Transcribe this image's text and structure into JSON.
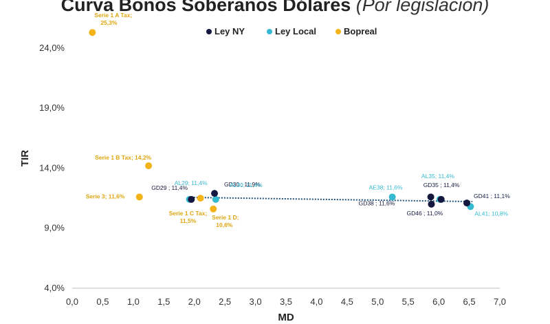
{
  "title": {
    "main": "Curva Bonos Soberanos Dólares",
    "sub": "(Por legislación)"
  },
  "chart_data": {
    "type": "scatter",
    "title": "Curva Bonos Soberanos Dólares (Por legislación)",
    "xlabel": "MD",
    "ylabel": "TIR",
    "xlim": [
      0,
      7
    ],
    "ylim": [
      4,
      26
    ],
    "x_ticks": [
      "0,0",
      "0,5",
      "1,0",
      "1,5",
      "2,0",
      "2,5",
      "3,0",
      "3,5",
      "4,0",
      "4,5",
      "5,0",
      "5,5",
      "6,0",
      "6,5",
      "7,0"
    ],
    "y_ticks": [
      "4,0%",
      "9,0%",
      "14,0%",
      "19,0%",
      "24,0%"
    ],
    "legend": "top",
    "colors": {
      "Ley NY": "#14183f",
      "Ley Local": "#35b9d0",
      "Bopreal": "#f3b41a",
      "trend": "#1d4f78"
    },
    "series": [
      {
        "name": "Ley NY",
        "points": [
          {
            "x": 1.95,
            "y": 11.4,
            "label": "GD29 ; 11,4%"
          },
          {
            "x": 2.33,
            "y": 11.9,
            "label": "GD30 ; 11,9%"
          },
          {
            "x": 5.88,
            "y": 11.0,
            "label": "GD46 ; 11,0%"
          },
          {
            "x": 5.87,
            "y": 11.6,
            "label": "GD38 ; 11,6%"
          },
          {
            "x": 6.04,
            "y": 11.4,
            "label": "GD35 ; 11,4%"
          },
          {
            "x": 6.46,
            "y": 11.1,
            "label": "GD41 ; 11,1%"
          }
        ]
      },
      {
        "name": "Ley Local",
        "points": [
          {
            "x": 1.92,
            "y": 11.4,
            "label": "AL29; 11,4%"
          },
          {
            "x": 2.35,
            "y": 11.4,
            "label": "AL30; 11,4%"
          },
          {
            "x": 5.24,
            "y": 11.6,
            "label": "AE38; 11,6%"
          },
          {
            "x": 6.02,
            "y": 11.4,
            "label": "AL35; 11,4%"
          },
          {
            "x": 6.52,
            "y": 10.8,
            "label": "AL41; 10,8%"
          }
        ]
      },
      {
        "name": "Bopreal",
        "points": [
          {
            "x": 0.33,
            "y": 25.3,
            "label": "Serie 1 A Tax; 25,3%"
          },
          {
            "x": 1.25,
            "y": 14.2,
            "label": "Serie 1 B Tax; 14,2%"
          },
          {
            "x": 1.1,
            "y": 11.6,
            "label": "Serie 3; 11,6%"
          },
          {
            "x": 2.1,
            "y": 11.5,
            "label": "Serie 1 C Tax; 11,5%"
          },
          {
            "x": 2.31,
            "y": 10.6,
            "label": "Serie 1 D; 10,6%"
          }
        ]
      }
    ]
  }
}
